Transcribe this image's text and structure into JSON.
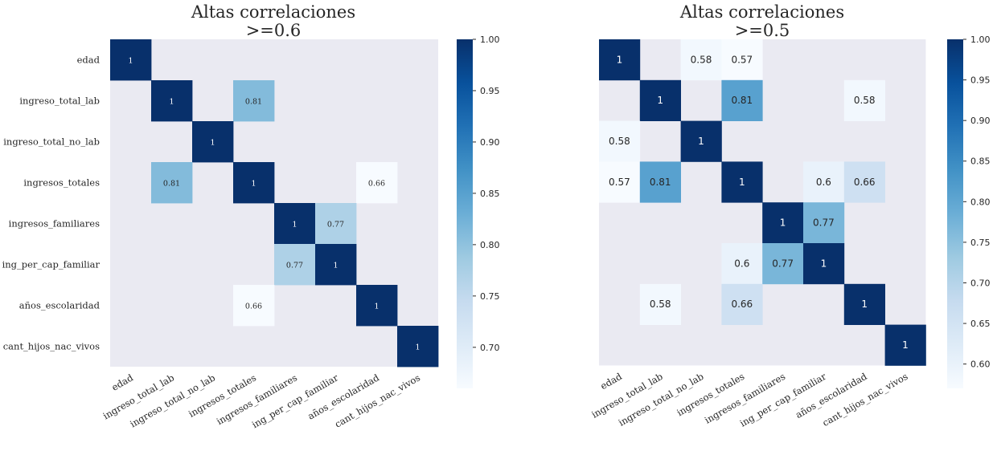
{
  "chart_data": [
    {
      "type": "heatmap",
      "title_lines": [
        "Altas correlaciones",
        ">=0.6"
      ],
      "rows": [
        "edad",
        "ingreso_total_lab",
        "ingreso_total_no_lab",
        "ingresos_totales",
        "ingresos_familiares",
        "ing_per_cap_familiar",
        "años_escolaridad",
        "cant_hijos_nac_vivos"
      ],
      "cols": [
        "edad",
        "ingreso_total_lab",
        "ingreso_total_no_lab",
        "ingresos_totales",
        "ingresos_familiares",
        "ing_per_cap_familiar",
        "años_escolaridad",
        "cant_hijos_nac_vivos"
      ],
      "values": [
        [
          1,
          null,
          null,
          null,
          null,
          null,
          null,
          null
        ],
        [
          null,
          1,
          null,
          0.81,
          null,
          null,
          null,
          null
        ],
        [
          null,
          null,
          1,
          null,
          null,
          null,
          null,
          null
        ],
        [
          null,
          0.81,
          null,
          1,
          null,
          null,
          0.66,
          null
        ],
        [
          null,
          null,
          null,
          null,
          1,
          0.77,
          null,
          null
        ],
        [
          null,
          null,
          null,
          null,
          0.77,
          1,
          null,
          null
        ],
        [
          null,
          null,
          null,
          0.66,
          null,
          null,
          1,
          null
        ],
        [
          null,
          null,
          null,
          null,
          null,
          null,
          null,
          1
        ]
      ],
      "labels": [
        [
          "1",
          null,
          null,
          null,
          null,
          null,
          null,
          null
        ],
        [
          null,
          "1",
          null,
          "0.81",
          null,
          null,
          null,
          null
        ],
        [
          null,
          null,
          "1",
          null,
          null,
          null,
          null,
          null
        ],
        [
          null,
          "0.81",
          null,
          "1",
          null,
          null,
          "0.66",
          null
        ],
        [
          null,
          null,
          null,
          null,
          "1",
          "0.77",
          null,
          null
        ],
        [
          null,
          null,
          null,
          null,
          "0.77",
          "1",
          null,
          null
        ],
        [
          null,
          null,
          null,
          "0.66",
          null,
          null,
          "1",
          null
        ],
        [
          null,
          null,
          null,
          null,
          null,
          null,
          null,
          "1"
        ]
      ],
      "colormap": "Blues",
      "vmin": 0.66,
      "vmax": 1.0,
      "colorbar_ticks": [
        "0.70",
        "0.75",
        "0.80",
        "0.85",
        "0.90",
        "0.95",
        "1.00"
      ],
      "show_y_labels": true,
      "annotation_font": "serif",
      "missing_color": "#eaeaf2"
    },
    {
      "type": "heatmap",
      "title_lines": [
        "Altas correlaciones",
        ">=0.5"
      ],
      "rows": [
        "edad",
        "ingreso_total_lab",
        "ingreso_total_no_lab",
        "ingresos_totales",
        "ingresos_familiares",
        "ing_per_cap_familiar",
        "años_escolaridad",
        "cant_hijos_nac_vivos"
      ],
      "cols": [
        "edad",
        "ingreso_total_lab",
        "ingreso_total_no_lab",
        "ingresos_totales",
        "ingresos_familiares",
        "ing_per_cap_familiar",
        "años_escolaridad",
        "cant_hijos_nac_vivos"
      ],
      "values": [
        [
          1,
          null,
          0.58,
          0.57,
          null,
          null,
          null,
          null
        ],
        [
          null,
          1,
          null,
          0.81,
          null,
          null,
          0.58,
          null
        ],
        [
          0.58,
          null,
          1,
          null,
          null,
          null,
          null,
          null
        ],
        [
          0.57,
          0.81,
          null,
          1,
          null,
          0.6,
          0.66,
          null
        ],
        [
          null,
          null,
          null,
          null,
          1,
          0.77,
          null,
          null
        ],
        [
          null,
          null,
          null,
          0.6,
          0.77,
          1,
          null,
          null
        ],
        [
          null,
          0.58,
          null,
          0.66,
          null,
          null,
          1,
          null
        ],
        [
          null,
          null,
          null,
          null,
          null,
          null,
          null,
          1
        ]
      ],
      "labels": [
        [
          "1",
          null,
          "0.58",
          "0.57",
          null,
          null,
          null,
          null
        ],
        [
          null,
          "1",
          null,
          "0.81",
          null,
          null,
          "0.58",
          null
        ],
        [
          "0.58",
          null,
          "1",
          null,
          null,
          null,
          null,
          null
        ],
        [
          "0.57",
          "0.81",
          null,
          "1",
          null,
          "0.6",
          "0.66",
          null
        ],
        [
          null,
          null,
          null,
          null,
          "1",
          "0.77",
          null,
          null
        ],
        [
          null,
          null,
          null,
          "0.6",
          "0.77",
          "1",
          null,
          null
        ],
        [
          null,
          "0.58",
          null,
          "0.66",
          null,
          null,
          "1",
          null
        ],
        [
          null,
          null,
          null,
          null,
          null,
          null,
          null,
          "1"
        ]
      ],
      "colormap": "Blues",
      "vmin": 0.57,
      "vmax": 1.0,
      "colorbar_ticks": [
        "0.60",
        "0.65",
        "0.70",
        "0.75",
        "0.80",
        "0.85",
        "0.90",
        "0.95",
        "1.00"
      ],
      "show_y_labels": false,
      "annotation_font": "sans",
      "missing_color": "#eaeaf2"
    }
  ]
}
